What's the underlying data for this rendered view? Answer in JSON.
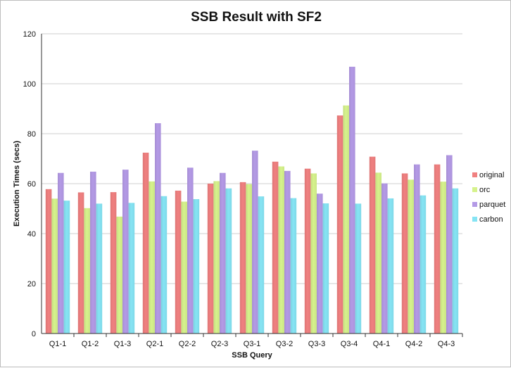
{
  "chart_data": {
    "type": "bar",
    "title": "SSB Result with SF2",
    "xlabel": "SSB Query",
    "ylabel": "Execution Times (secs)",
    "ylim": [
      0,
      120
    ],
    "yticks": [
      0,
      20,
      40,
      60,
      80,
      100,
      120
    ],
    "grid": true,
    "legend_position": "right",
    "categories": [
      "Q1-1",
      "Q1-2",
      "Q1-3",
      "Q2-1",
      "Q2-2",
      "Q2-3",
      "Q3-1",
      "Q3-2",
      "Q3-3",
      "Q3-4",
      "Q4-1",
      "Q4-2",
      "Q4-3"
    ],
    "series": [
      {
        "name": "original",
        "color": "#f08080",
        "values": [
          57.8,
          56.5,
          56.6,
          72.4,
          57.2,
          60.0,
          60.6,
          68.8,
          66.0,
          87.3,
          70.8,
          64.1,
          67.7
        ]
      },
      {
        "name": "orc",
        "color": "#d6f28c",
        "values": [
          54.0,
          50.2,
          46.8,
          60.9,
          52.8,
          61.0,
          59.8,
          66.9,
          64.1,
          91.3,
          64.4,
          61.6,
          60.8
        ]
      },
      {
        "name": "parquet",
        "color": "#b49ae6",
        "values": [
          64.3,
          64.8,
          65.6,
          84.2,
          66.4,
          64.3,
          73.2,
          65.1,
          56.0,
          106.8,
          60.1,
          67.7,
          71.4
        ]
      },
      {
        "name": "carbon",
        "color": "#86e4f4",
        "values": [
          53.2,
          52.0,
          52.3,
          55.0,
          53.8,
          58.1,
          54.9,
          54.2,
          52.1,
          52.0,
          54.1,
          55.3,
          58.1
        ]
      }
    ]
  }
}
